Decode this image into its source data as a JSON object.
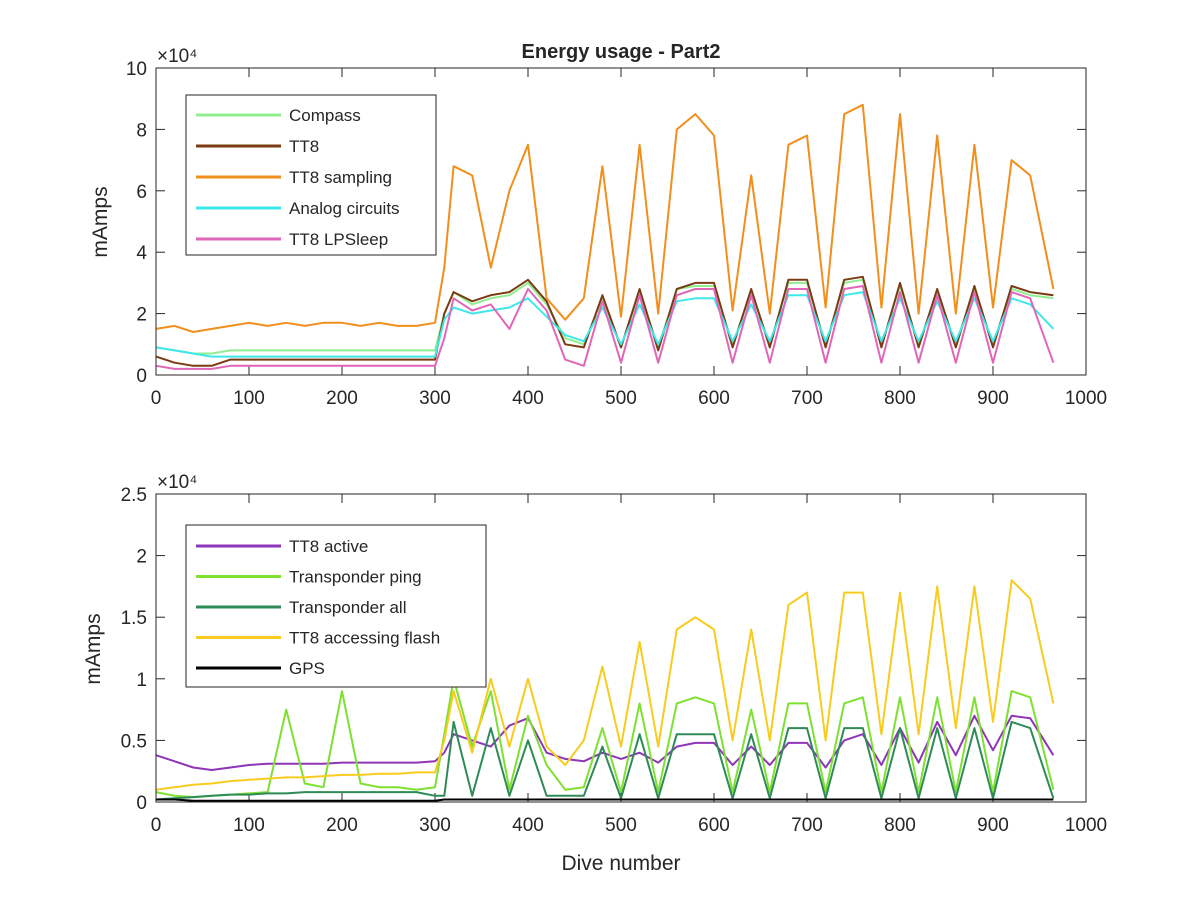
{
  "chart_data": [
    {
      "type": "line",
      "title": "Energy usage - Part2",
      "xlabel": "",
      "ylabel": "mAmps",
      "y_exponent_label": "×10⁴",
      "xlim": [
        0,
        1000
      ],
      "ylim": [
        0,
        10
      ],
      "y_scale_factor": 10000,
      "xticks": [
        0,
        100,
        200,
        300,
        400,
        500,
        600,
        700,
        800,
        900,
        1000
      ],
      "yticks": [
        0,
        2,
        4,
        6,
        8,
        10
      ],
      "grid": false,
      "legend_position": "top-left",
      "x": [
        0,
        20,
        40,
        60,
        80,
        100,
        120,
        140,
        160,
        180,
        200,
        220,
        240,
        260,
        280,
        300,
        310,
        320,
        340,
        360,
        380,
        400,
        420,
        440,
        460,
        480,
        500,
        520,
        540,
        560,
        580,
        600,
        620,
        640,
        660,
        680,
        700,
        720,
        740,
        760,
        780,
        800,
        820,
        840,
        860,
        880,
        900,
        920,
        940,
        965
      ],
      "series": [
        {
          "name": "Compass",
          "color": "#90ee90",
          "values": [
            0.9,
            0.8,
            0.7,
            0.7,
            0.8,
            0.8,
            0.8,
            0.8,
            0.8,
            0.8,
            0.8,
            0.8,
            0.8,
            0.8,
            0.8,
            0.8,
            2.0,
            2.7,
            2.3,
            2.5,
            2.6,
            3.0,
            2.3,
            1.2,
            1.0,
            2.5,
            0.9,
            2.7,
            0.9,
            2.8,
            2.9,
            2.9,
            1.0,
            2.7,
            1.0,
            3.0,
            3.0,
            1.0,
            3.0,
            3.1,
            1.0,
            2.9,
            1.0,
            2.7,
            1.0,
            2.8,
            1.0,
            2.8,
            2.6,
            2.5
          ]
        },
        {
          "name": "TT8",
          "color": "#7a3b12",
          "values": [
            0.6,
            0.4,
            0.3,
            0.3,
            0.5,
            0.5,
            0.5,
            0.5,
            0.5,
            0.5,
            0.5,
            0.5,
            0.5,
            0.5,
            0.5,
            0.5,
            2.0,
            2.7,
            2.4,
            2.6,
            2.7,
            3.1,
            2.4,
            1.0,
            0.9,
            2.6,
            0.9,
            2.8,
            0.8,
            2.8,
            3.0,
            3.0,
            0.9,
            2.8,
            0.9,
            3.1,
            3.1,
            0.9,
            3.1,
            3.2,
            0.9,
            3.0,
            0.9,
            2.8,
            0.9,
            2.9,
            0.9,
            2.9,
            2.7,
            2.6
          ]
        },
        {
          "name": "TT8 sampling",
          "color": "#f28e1c",
          "values": [
            1.5,
            1.6,
            1.4,
            1.5,
            1.6,
            1.7,
            1.6,
            1.7,
            1.6,
            1.7,
            1.7,
            1.6,
            1.7,
            1.6,
            1.6,
            1.7,
            3.5,
            6.8,
            6.5,
            3.5,
            6.0,
            7.5,
            2.5,
            1.8,
            2.5,
            6.8,
            1.9,
            7.5,
            2.0,
            8.0,
            8.5,
            7.8,
            2.1,
            6.5,
            2.0,
            7.5,
            7.8,
            2.2,
            8.5,
            8.8,
            2.2,
            8.5,
            2.0,
            7.8,
            2.0,
            7.5,
            2.2,
            7.0,
            6.5,
            2.8
          ]
        },
        {
          "name": "Analog circuits",
          "color": "#3ee8e8",
          "values": [
            0.9,
            0.8,
            0.7,
            0.6,
            0.6,
            0.6,
            0.6,
            0.6,
            0.6,
            0.6,
            0.6,
            0.6,
            0.6,
            0.6,
            0.6,
            0.6,
            1.8,
            2.2,
            2.0,
            2.1,
            2.2,
            2.5,
            1.9,
            1.3,
            1.1,
            2.2,
            1.0,
            2.3,
            1.0,
            2.4,
            2.5,
            2.5,
            1.1,
            2.3,
            1.1,
            2.6,
            2.6,
            1.1,
            2.6,
            2.7,
            1.1,
            2.5,
            1.1,
            2.4,
            1.1,
            2.5,
            1.1,
            2.5,
            2.3,
            1.5
          ]
        },
        {
          "name": "TT8 LPSleep",
          "color": "#e066b8",
          "values": [
            0.3,
            0.2,
            0.2,
            0.2,
            0.3,
            0.3,
            0.3,
            0.3,
            0.3,
            0.3,
            0.3,
            0.3,
            0.3,
            0.3,
            0.3,
            0.3,
            1.2,
            2.5,
            2.1,
            2.3,
            1.5,
            2.8,
            2.1,
            0.5,
            0.3,
            2.4,
            0.4,
            2.6,
            0.4,
            2.6,
            2.8,
            2.8,
            0.4,
            2.6,
            0.4,
            2.8,
            2.8,
            0.4,
            2.8,
            2.9,
            0.4,
            2.7,
            0.4,
            2.6,
            0.4,
            2.7,
            0.4,
            2.7,
            2.5,
            0.4
          ]
        }
      ]
    },
    {
      "type": "line",
      "title": "",
      "xlabel": "Dive number",
      "ylabel": "mAmps",
      "y_exponent_label": "×10⁴",
      "xlim": [
        0,
        1000
      ],
      "ylim": [
        0,
        2.5
      ],
      "y_scale_factor": 10000,
      "xticks": [
        0,
        100,
        200,
        300,
        400,
        500,
        600,
        700,
        800,
        900,
        1000
      ],
      "yticks": [
        0,
        0.5,
        1,
        1.5,
        2,
        2.5
      ],
      "ytick_labels": [
        "0",
        "0.5",
        "1",
        "1.5",
        "2",
        "2.5"
      ],
      "grid": false,
      "legend_position": "top-left",
      "x": [
        0,
        20,
        40,
        60,
        80,
        100,
        120,
        140,
        160,
        180,
        200,
        220,
        240,
        260,
        280,
        300,
        310,
        320,
        340,
        360,
        380,
        400,
        420,
        440,
        460,
        480,
        500,
        520,
        540,
        560,
        580,
        600,
        620,
        640,
        660,
        680,
        700,
        720,
        740,
        760,
        780,
        800,
        820,
        840,
        860,
        880,
        900,
        920,
        940,
        965
      ],
      "series": [
        {
          "name": "TT8 active",
          "color": "#8e35b8",
          "values": [
            0.38,
            0.33,
            0.28,
            0.26,
            0.28,
            0.3,
            0.31,
            0.31,
            0.31,
            0.31,
            0.32,
            0.32,
            0.32,
            0.32,
            0.32,
            0.33,
            0.4,
            0.55,
            0.5,
            0.45,
            0.62,
            0.68,
            0.4,
            0.35,
            0.33,
            0.4,
            0.35,
            0.4,
            0.32,
            0.45,
            0.48,
            0.48,
            0.3,
            0.45,
            0.3,
            0.48,
            0.48,
            0.28,
            0.5,
            0.55,
            0.3,
            0.6,
            0.32,
            0.65,
            0.38,
            0.7,
            0.42,
            0.7,
            0.68,
            0.38
          ]
        },
        {
          "name": "Transponder ping",
          "color": "#7ee030",
          "values": [
            0.08,
            0.05,
            0.04,
            0.05,
            0.06,
            0.07,
            0.08,
            0.75,
            0.15,
            0.12,
            0.9,
            0.15,
            0.12,
            0.12,
            0.1,
            0.12,
            0.55,
            1.0,
            0.45,
            0.9,
            0.1,
            0.7,
            0.3,
            0.1,
            0.12,
            0.6,
            0.08,
            0.8,
            0.08,
            0.8,
            0.85,
            0.8,
            0.08,
            0.75,
            0.08,
            0.8,
            0.8,
            0.08,
            0.8,
            0.85,
            0.08,
            0.85,
            0.08,
            0.85,
            0.08,
            0.85,
            0.08,
            0.9,
            0.85,
            0.1
          ]
        },
        {
          "name": "Transponder all",
          "color": "#2e8b57",
          "values": [
            0.02,
            0.03,
            0.04,
            0.05,
            0.06,
            0.06,
            0.07,
            0.07,
            0.08,
            0.08,
            0.08,
            0.08,
            0.08,
            0.08,
            0.08,
            0.05,
            0.05,
            0.65,
            0.05,
            0.6,
            0.05,
            0.5,
            0.05,
            0.05,
            0.05,
            0.45,
            0.03,
            0.55,
            0.03,
            0.55,
            0.55,
            0.55,
            0.03,
            0.55,
            0.03,
            0.6,
            0.6,
            0.03,
            0.6,
            0.6,
            0.03,
            0.6,
            0.03,
            0.6,
            0.03,
            0.6,
            0.03,
            0.65,
            0.6,
            0.03
          ]
        },
        {
          "name": "TT8 accessing flash",
          "color": "#f7cc1e",
          "values": [
            0.1,
            0.12,
            0.14,
            0.15,
            0.17,
            0.18,
            0.19,
            0.2,
            0.2,
            0.21,
            0.22,
            0.22,
            0.23,
            0.23,
            0.24,
            0.24,
            0.5,
            0.9,
            0.4,
            1.0,
            0.45,
            1.0,
            0.45,
            0.3,
            0.5,
            1.1,
            0.45,
            1.3,
            0.45,
            1.4,
            1.5,
            1.4,
            0.5,
            1.4,
            0.5,
            1.6,
            1.7,
            0.5,
            1.7,
            1.7,
            0.55,
            1.7,
            0.55,
            1.75,
            0.6,
            1.75,
            0.65,
            1.8,
            1.65,
            0.8
          ]
        },
        {
          "name": "GPS",
          "color": "#000000",
          "values": [
            0.02,
            0.02,
            0.01,
            0.01,
            0.01,
            0.01,
            0.01,
            0.01,
            0.01,
            0.01,
            0.01,
            0.01,
            0.01,
            0.01,
            0.01,
            0.01,
            0.02,
            0.02,
            0.02,
            0.02,
            0.02,
            0.02,
            0.02,
            0.02,
            0.02,
            0.02,
            0.02,
            0.02,
            0.02,
            0.02,
            0.02,
            0.02,
            0.02,
            0.02,
            0.02,
            0.02,
            0.02,
            0.02,
            0.02,
            0.02,
            0.02,
            0.02,
            0.02,
            0.02,
            0.02,
            0.02,
            0.02,
            0.02,
            0.02,
            0.02
          ]
        }
      ]
    }
  ]
}
